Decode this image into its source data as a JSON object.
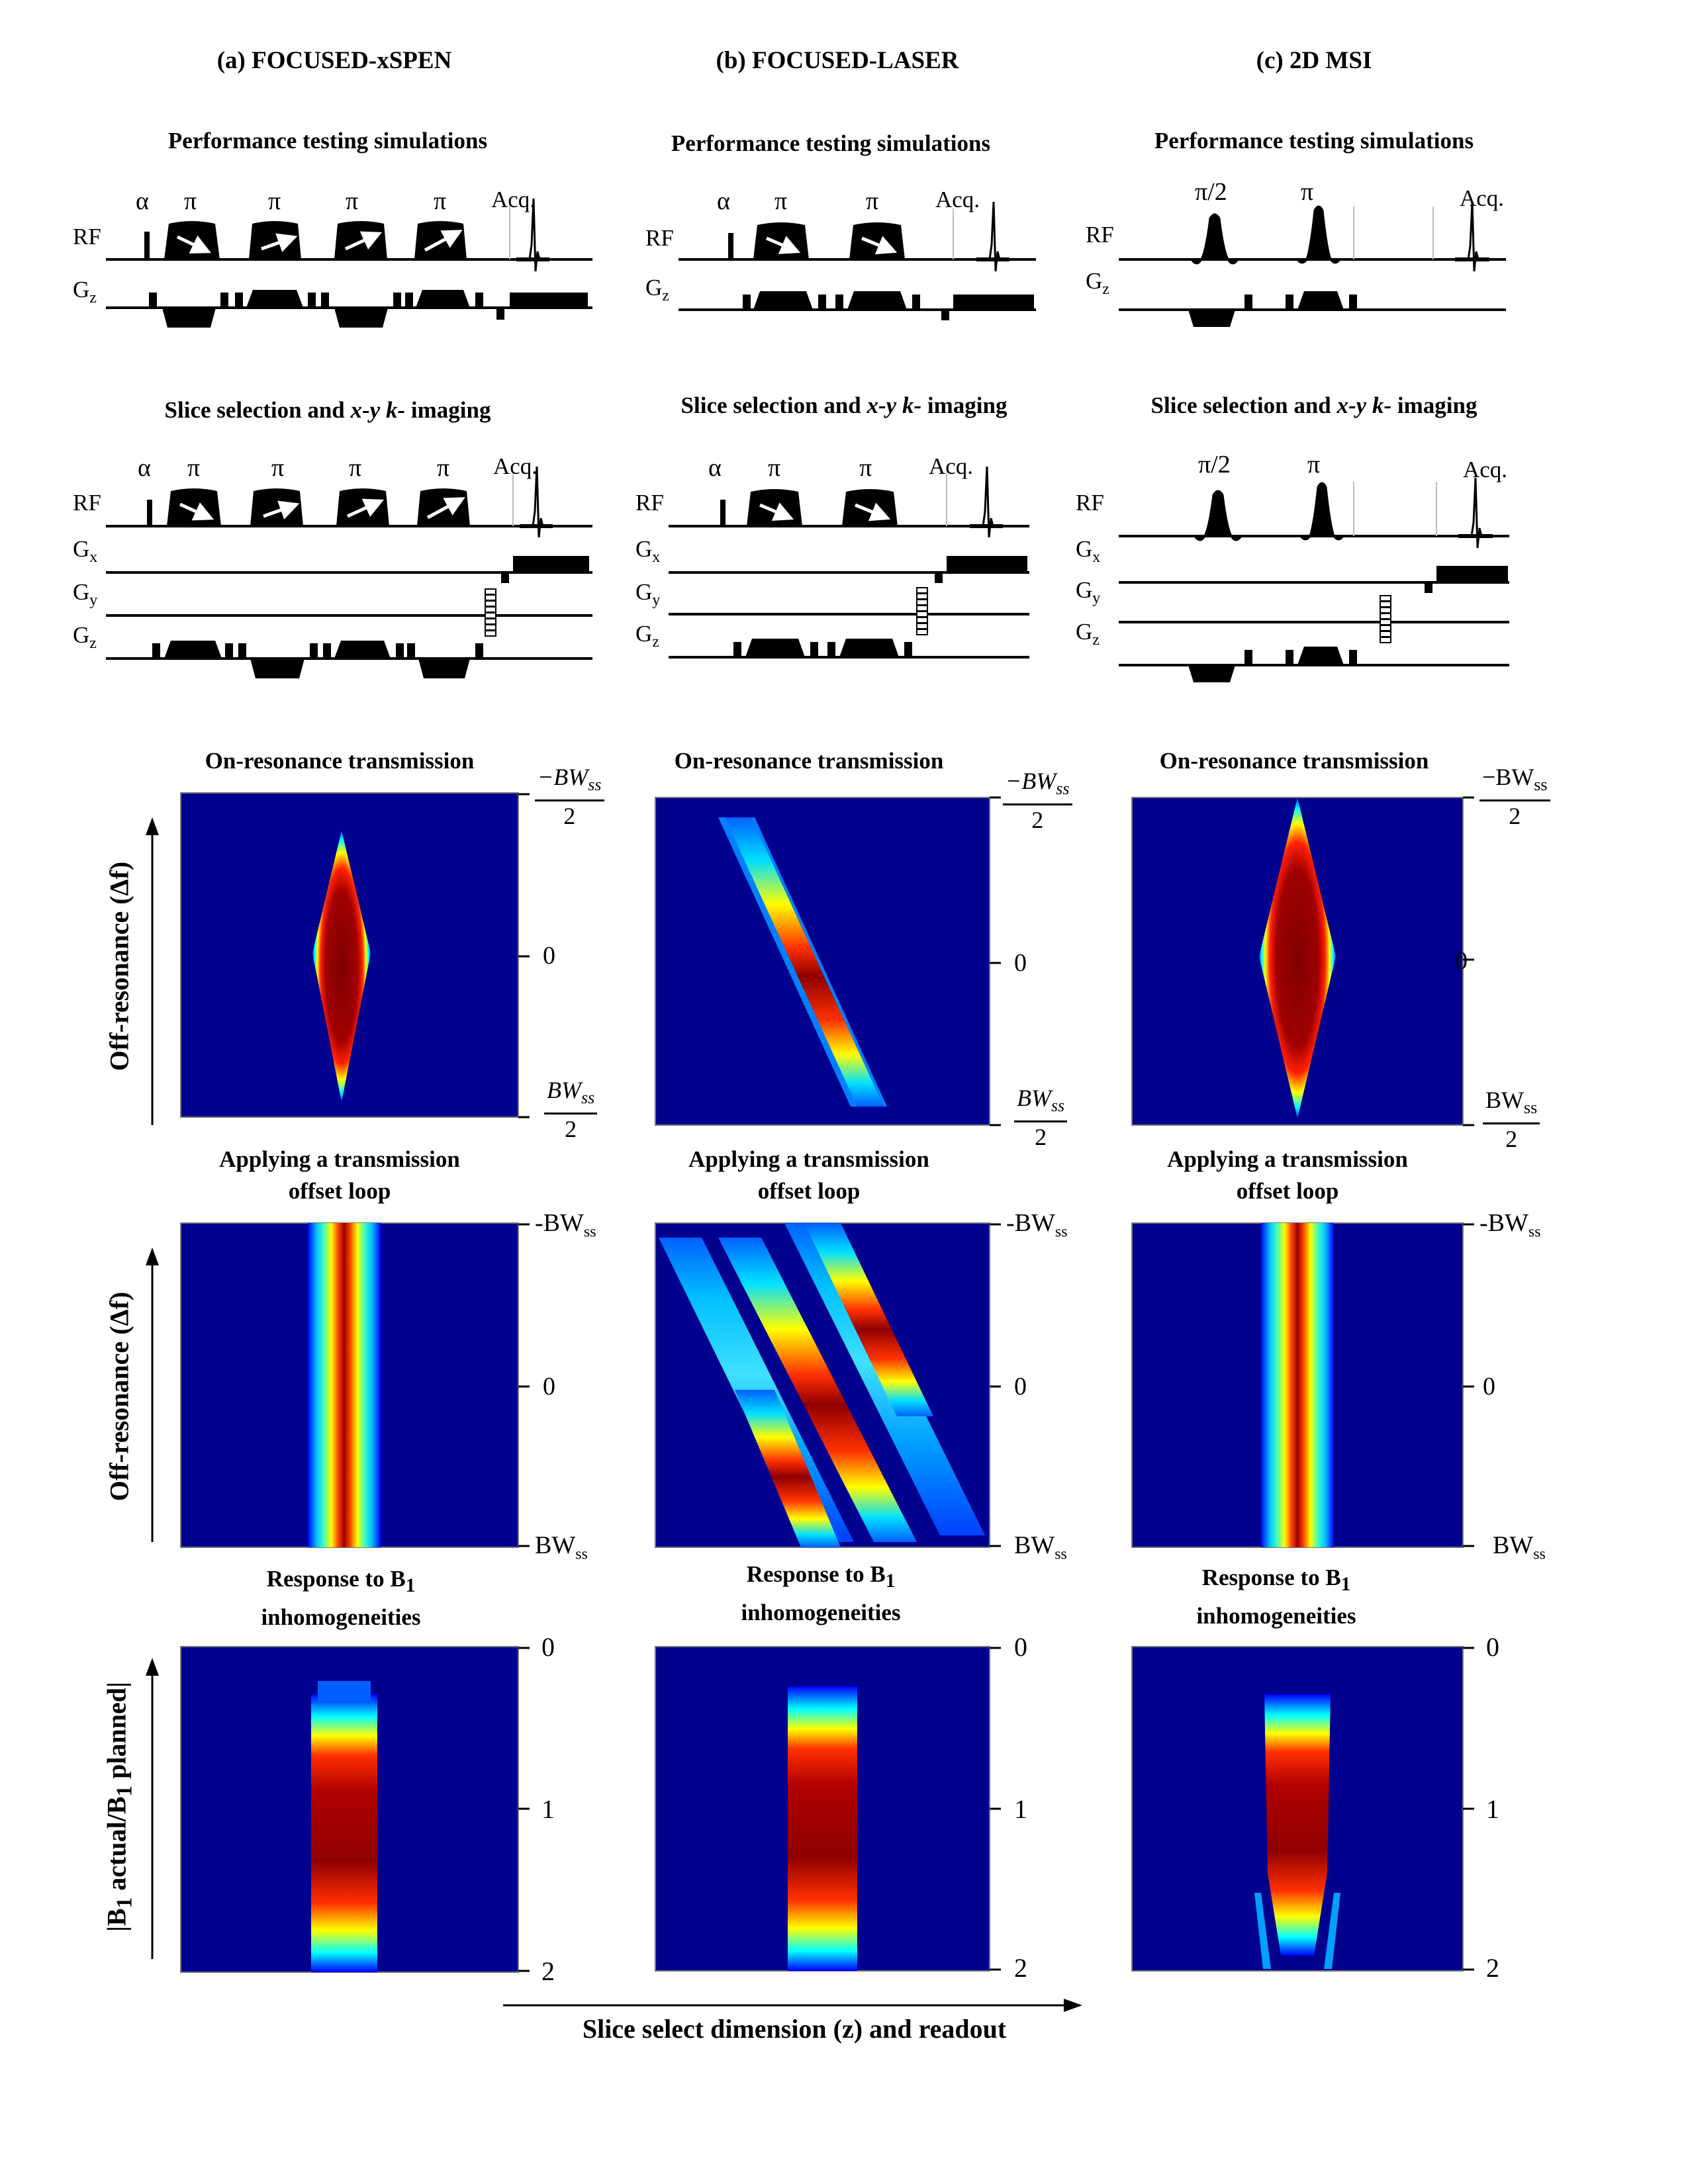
{
  "columns": [
    {
      "title": "(a) FOCUSED-xSPEN",
      "perf_title": "Performance testing simulations",
      "slice_title_pre": "Slice selection and ",
      "slice_title_it": "x-y k-",
      "slice_title_post": " imaging",
      "pulses": [
        "α",
        "π",
        "π",
        "π",
        "π"
      ],
      "acq": "Acq.",
      "ch_rf": "RF",
      "ch_gx": "G",
      "ch_gy": "G",
      "ch_gz": "G",
      "sub_x": "x",
      "sub_y": "y",
      "sub_z": "z",
      "on_title": "On-resonance transmission",
      "on_ticks": {
        "top_num": "−BW",
        "top_sub": "ss",
        "top_den": "2",
        "mid": "0",
        "bot_num": "BW",
        "bot_sub": "ss",
        "bot_den": "2"
      },
      "loop_title_1": "Applying a transmission",
      "loop_title_2": "offset loop",
      "loop_ticks": {
        "top": "-BW",
        "top_sub": "ss",
        "mid": "0",
        "bot": "BW",
        "bot_sub": "ss"
      },
      "b1_title_1": "Response to B",
      "b1_title_sub": "1",
      "b1_title_2": "inhomogeneities",
      "b1_ticks": [
        "0",
        "1",
        "2"
      ]
    },
    {
      "title": "(b) FOCUSED-LASER",
      "perf_title": "Performance testing simulations",
      "slice_title_pre": "Slice selection and ",
      "slice_title_it": "x-y k-",
      "slice_title_post": " imaging",
      "pulses": [
        "α",
        "π",
        "π"
      ],
      "acq": "Acq.",
      "ch_rf": "RF",
      "ch_gx": "G",
      "ch_gy": "G",
      "ch_gz": "G",
      "sub_x": "x",
      "sub_y": "y",
      "sub_z": "z",
      "on_title": "On-resonance transmission",
      "on_ticks": {
        "top_num": "−BW",
        "top_sub": "ss",
        "top_den": "2",
        "mid": "0",
        "bot_num": "BW",
        "bot_sub": "ss",
        "bot_den": "2"
      },
      "loop_title_1": "Applying a transmission",
      "loop_title_2": "offset loop",
      "loop_ticks": {
        "top": "-BW",
        "top_sub": "ss",
        "mid": "0",
        "bot": "BW",
        "bot_sub": "ss"
      },
      "b1_title_1": "Response to B",
      "b1_title_sub": "1",
      "b1_title_2": "inhomogeneities",
      "b1_ticks": [
        "0",
        "1",
        "2"
      ]
    },
    {
      "title": "(c) 2D MSI",
      "perf_title": "Performance testing simulations",
      "slice_title_pre": "Slice selection and ",
      "slice_title_it": "x-y k-",
      "slice_title_post": " imaging",
      "pulses": [
        "π/2",
        "π"
      ],
      "acq": "Acq.",
      "ch_rf": "RF",
      "ch_gx": "G",
      "ch_gy": "G",
      "ch_gz": "G",
      "sub_x": "x",
      "sub_y": "y",
      "sub_z": "z",
      "on_title": "On-resonance transmission",
      "on_ticks": {
        "top_num": "−BW",
        "top_sub": "ss",
        "top_den": "2",
        "mid": "0",
        "bot_num": "BW",
        "bot_sub": "ss",
        "bot_den": "2"
      },
      "loop_title_1": "Applying a transmission",
      "loop_title_2": "offset loop",
      "loop_ticks": {
        "top": "-BW",
        "top_sub": "ss",
        "mid": "0",
        "bot": "BW",
        "bot_sub": "ss"
      },
      "b1_title_1": "Response to B",
      "b1_title_sub": "1",
      "b1_title_2": "inhomogeneities",
      "b1_ticks": [
        "0",
        "1",
        "2"
      ]
    }
  ],
  "y_axis_offres": "Off-resonance (Δf)",
  "y_axis_b1_pre": "|B",
  "y_axis_b1_sub1": "1",
  "y_axis_b1_mid": " actual/B",
  "y_axis_b1_sub2": "1",
  "y_axis_b1_post": " planned|",
  "x_axis_label": "Slice select dimension (z) and readout",
  "colors": {
    "map_bg": "#00008f",
    "jet": [
      "#00008f",
      "#0000ff",
      "#0080ff",
      "#00ffff",
      "#80ff80",
      "#ffff00",
      "#ff8000",
      "#ff0000",
      "#800000"
    ]
  }
}
